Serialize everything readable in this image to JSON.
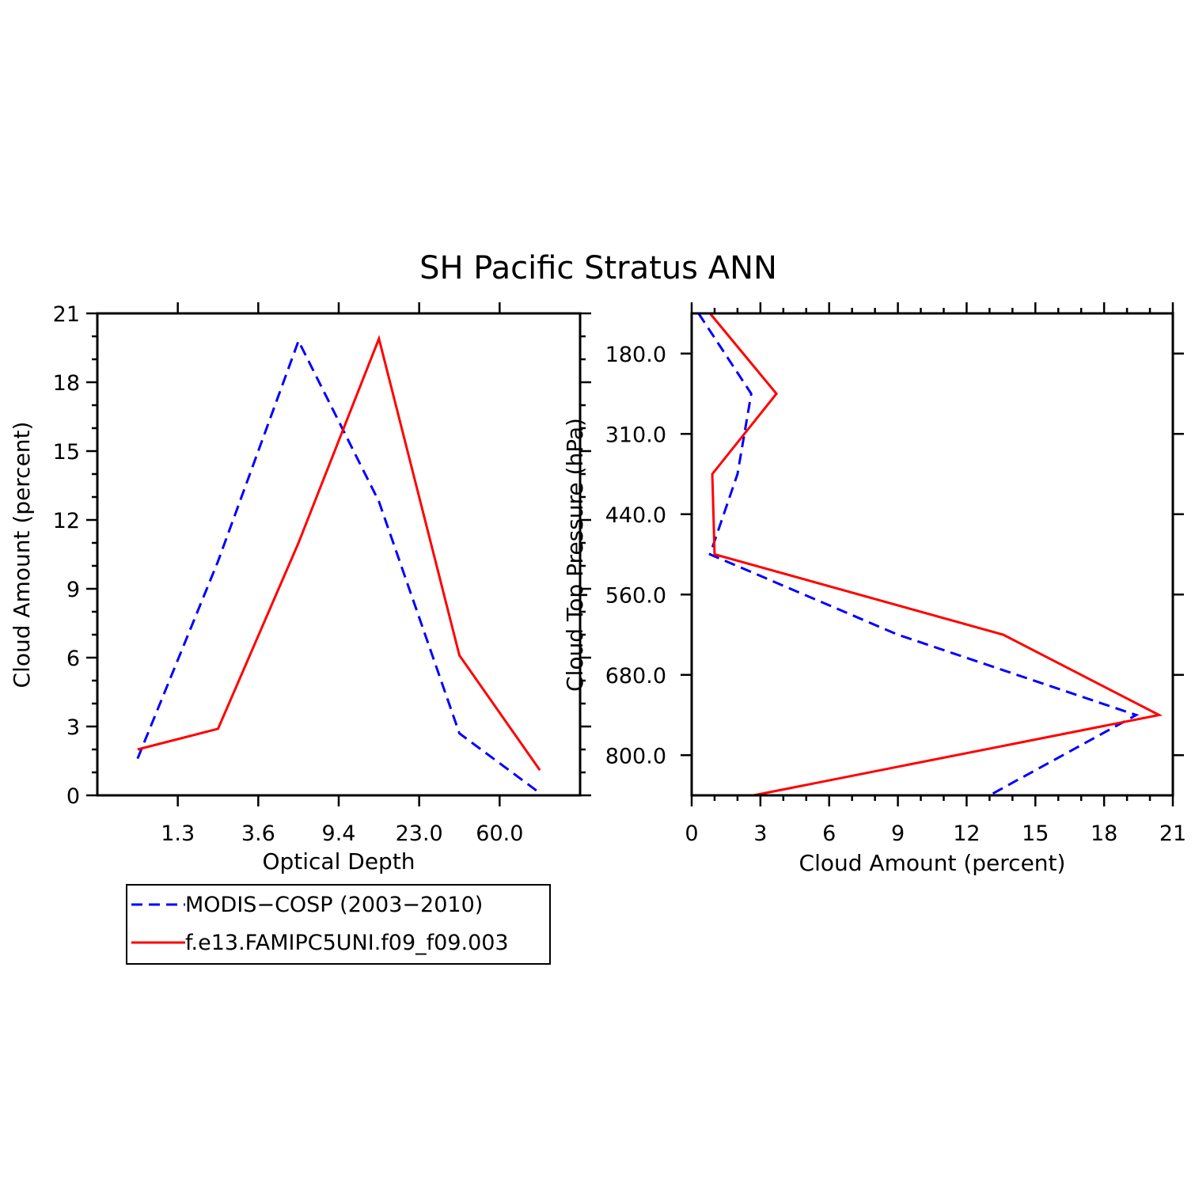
{
  "title": "SH Pacific Stratus ANN",
  "colors": {
    "modis": "#0000ff",
    "model": "#ff0000",
    "axes": "#000000"
  },
  "legend": {
    "entries": [
      {
        "label": "MODIS−COSP (2003−2010)",
        "color": "#0000ff",
        "style": "dashed"
      },
      {
        "label": "f.e13.FAMIPC5UNI.f09_f09.003",
        "color": "#ff0000",
        "style": "solid"
      }
    ]
  },
  "chart_data": [
    {
      "type": "line",
      "panel": "left",
      "xlabel": "Optical Depth",
      "ylabel": "Cloud Amount (percent)",
      "x": [
        0,
        1,
        2,
        3,
        4,
        5
      ],
      "x_range": [
        -0.5,
        5.5
      ],
      "xtick_positions": [
        0.5,
        1.5,
        2.5,
        3.5,
        4.5
      ],
      "xtick_labels": [
        "1.3",
        "3.6",
        "9.4",
        "23.0",
        "60.0"
      ],
      "ylim": [
        0,
        21
      ],
      "ytick_labels": [
        "0",
        "3",
        "6",
        "9",
        "12",
        "15",
        "18",
        "21"
      ],
      "series": [
        {
          "name": "MODIS−COSP (2003−2010)",
          "color": "#0000ff",
          "style": "dashed",
          "values": [
            1.6,
            10.2,
            19.8,
            12.8,
            2.7,
            0.1
          ]
        },
        {
          "name": "f.e13.FAMIPC5UNI.f09_f09.003",
          "color": "#ff0000",
          "style": "solid",
          "values": [
            2.0,
            2.9,
            11.0,
            19.9,
            6.1,
            1.1
          ]
        }
      ]
    },
    {
      "type": "line",
      "panel": "right",
      "orientation": "horizontal",
      "xlabel": "Cloud Amount (percent)",
      "ylabel": "Cloud Top Pressure (hPa)",
      "xlim": [
        0,
        21
      ],
      "xtick_labels": [
        "0",
        "3",
        "6",
        "9",
        "12",
        "15",
        "18",
        "21"
      ],
      "level_range": [
        0,
        6
      ],
      "ytick_positions": [
        0.5,
        1.5,
        2.5,
        3.5,
        4.5,
        5.5
      ],
      "ytick_labels": [
        "180.0",
        "310.0",
        "440.0",
        "560.0",
        "680.0",
        "800.0"
      ],
      "levels": [
        0,
        1,
        2,
        3,
        4,
        5,
        6
      ],
      "series": [
        {
          "name": "MODIS−COSP (2003−2010)",
          "color": "#0000ff",
          "style": "dashed",
          "values": [
            0.3,
            2.6,
            2.0,
            0.8,
            9.0,
            19.4,
            13.0
          ]
        },
        {
          "name": "f.e13.FAMIPC5UNI.f09_f09.003",
          "color": "#ff0000",
          "style": "solid",
          "values": [
            0.8,
            3.7,
            0.9,
            1.0,
            13.6,
            20.4,
            2.7
          ]
        }
      ]
    }
  ]
}
